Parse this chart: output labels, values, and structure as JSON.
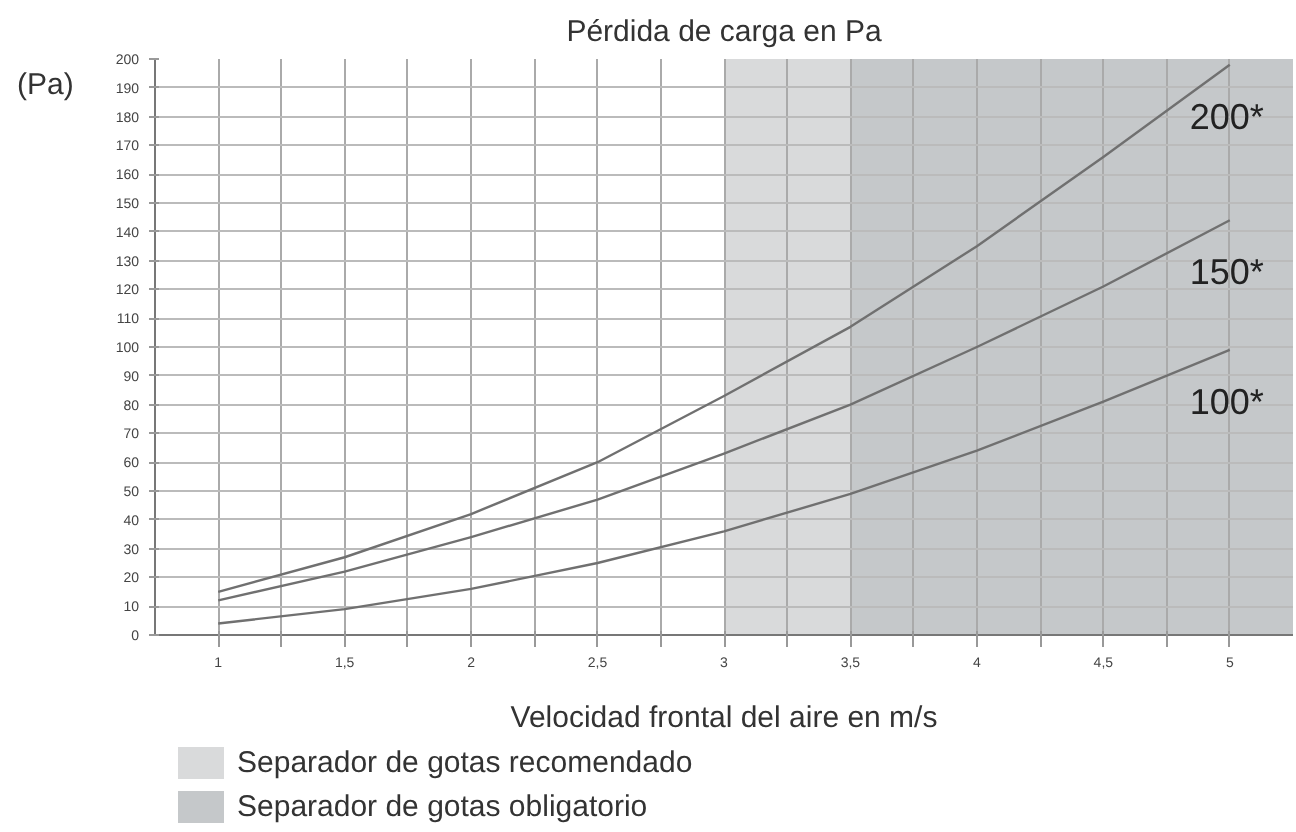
{
  "chart_data": {
    "type": "line",
    "title": "Pérdida de carga en Pa",
    "xlabel": "Velocidad frontal del aire en m/s",
    "ylabel": "(Pa)",
    "x": [
      1,
      1.5,
      2,
      2.5,
      3,
      3.5,
      4,
      4.5,
      5
    ],
    "series": [
      {
        "name": "200*",
        "color": "#707070",
        "values": [
          15,
          27,
          42,
          60,
          83,
          107,
          135,
          166,
          198
        ]
      },
      {
        "name": "150*",
        "color": "#707070",
        "values": [
          12,
          22,
          34,
          47,
          63,
          80,
          100,
          121,
          144
        ]
      },
      {
        "name": "100*",
        "color": "#707070",
        "values": [
          4,
          9,
          16,
          25,
          36,
          49,
          64,
          81,
          99
        ]
      }
    ],
    "bands": [
      {
        "axis": "x",
        "from": 3,
        "to": 3.5,
        "label": "Separador de gotas recomendado",
        "color": "#d9dadb"
      },
      {
        "axis": "x",
        "from": 3.5,
        "to": 5.25,
        "label": "Separador de gotas obligatorio",
        "color": "#c5c8ca"
      }
    ],
    "xlim": [
      0.75,
      5.25
    ],
    "xticks": [
      1,
      {
        "value": 1.25,
        "label": null
      },
      {
        "value": 1.5,
        "label": "1,5"
      },
      {
        "value": 1.75,
        "label": null
      },
      2,
      {
        "value": 2.25,
        "label": null
      },
      {
        "value": 2.5,
        "label": "2,5"
      },
      {
        "value": 2.75,
        "label": null
      },
      3,
      {
        "value": 3.25,
        "label": null
      },
      {
        "value": 3.5,
        "label": "3,5"
      },
      {
        "value": 3.75,
        "label": null
      },
      4,
      {
        "value": 4.25,
        "label": null
      },
      {
        "value": 4.5,
        "label": "4,5"
      },
      {
        "value": 4.75,
        "label": null
      },
      5
    ],
    "ylim": [
      0,
      200
    ],
    "yticks": [
      0,
      10,
      20,
      30,
      40,
      50,
      60,
      70,
      80,
      90,
      100,
      110,
      120,
      130,
      140,
      150,
      160,
      170,
      180,
      190,
      200
    ],
    "grid": true,
    "legend": "bottom",
    "line_style": "solid",
    "marker": "none"
  }
}
